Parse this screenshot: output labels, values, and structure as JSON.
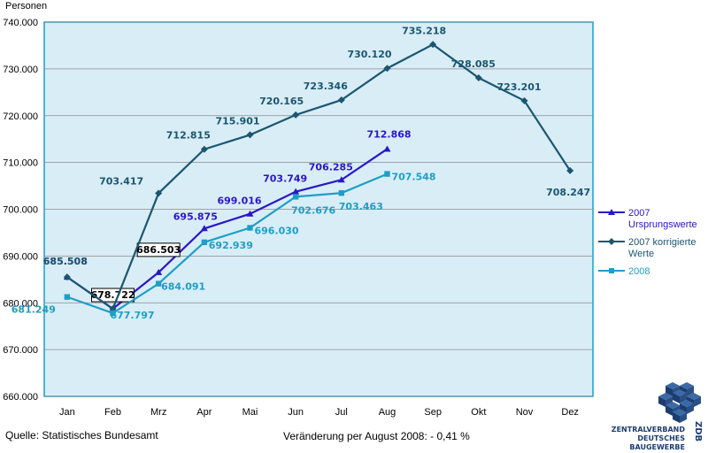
{
  "chart_data": {
    "type": "line",
    "ylabel": "Personen",
    "categories": [
      "Jan",
      "Feb",
      "Mrz",
      "Apr",
      "Mai",
      "Jun",
      "Jul",
      "Aug",
      "Sep",
      "Okt",
      "Nov",
      "Dez"
    ],
    "ylim": [
      660000,
      740000
    ],
    "y_ticks": [
      660000,
      670000,
      680000,
      690000,
      700000,
      710000,
      720000,
      730000,
      740000
    ],
    "y_tick_labels": [
      "660.000",
      "670.000",
      "680.000",
      "690.000",
      "700.000",
      "710.000",
      "720.000",
      "730.000",
      "740.000"
    ],
    "grid": "horizontal",
    "legend_position": "right",
    "series": [
      {
        "name": "2007 Ursprungswerte",
        "legend_lines": [
          "2007",
          "Ursprungswerte"
        ],
        "color": "#2a16c8",
        "marker": "triangle",
        "values": [
          685508,
          678722,
          686503,
          695875,
          699016,
          703749,
          706285,
          712868,
          null,
          null,
          null,
          null
        ],
        "labels": [
          "685.508",
          "678.722",
          "686.503",
          "695.875",
          "699.016",
          "703.749",
          "706.285",
          "712.868",
          null,
          null,
          null,
          null
        ]
      },
      {
        "name": "2007 korrigierte Werte",
        "legend_lines": [
          "2007 korrigierte",
          "Werte"
        ],
        "color": "#1b5670",
        "marker": "diamond",
        "values": [
          685508,
          678722,
          703417,
          712815,
          715901,
          720165,
          723346,
          730120,
          735218,
          728085,
          723201,
          708247
        ],
        "labels": [
          "685.508",
          null,
          "703.417",
          "712.815",
          "715.901",
          "720.165",
          "723.346",
          "730.120",
          "735.218",
          "728.085",
          "723.201",
          "708.247"
        ]
      },
      {
        "name": "2008",
        "legend_lines": [
          "2008"
        ],
        "color": "#1e9ec6",
        "marker": "square",
        "values": [
          681249,
          677797,
          684091,
          692939,
          696030,
          702676,
          703463,
          707548,
          null,
          null,
          null,
          null
        ],
        "labels": [
          "681.249",
          "677.797",
          "684.091",
          "692.939",
          "696.030",
          "702.676",
          "703.463",
          "707.548",
          null,
          null,
          null,
          null
        ]
      }
    ],
    "source": "Quelle: Statistisches Bundesamt",
    "change_note": "Veränderung per August 2008:  - 0,41 %"
  },
  "logo": {
    "lines": [
      "ZENTRALVERBAND",
      "DEUTSCHES",
      "BAUGEWERBE"
    ],
    "abbr": "ZDB",
    "color": "#1c3d6e"
  },
  "colors": {
    "plot_background": "#d9edf7",
    "plot_border": "#1e9ec6",
    "grid": "#8a8a8a"
  }
}
